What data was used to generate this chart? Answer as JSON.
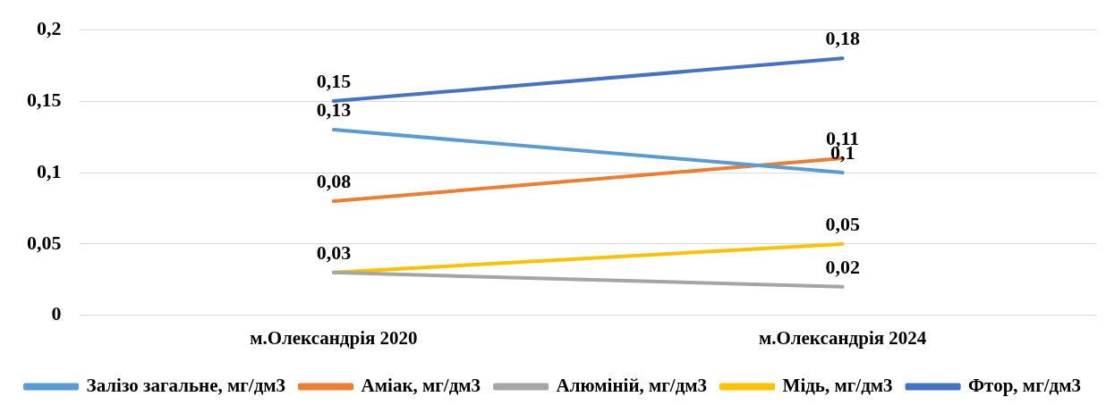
{
  "chart_data": {
    "type": "line",
    "categories": [
      "м.Олександрія 2020",
      "м.Олександрія 2024"
    ],
    "series": [
      {
        "name": "Залізо загальне, мг/дм3",
        "color": "#5b9bd5",
        "values": [
          0.13,
          0.1
        ],
        "value_labels": [
          "0,13",
          "0,1"
        ]
      },
      {
        "name": "Аміак, мг/дм3",
        "color": "#ed7d31",
        "values": [
          0.08,
          0.11
        ],
        "value_labels": [
          "0,08",
          "0,11"
        ]
      },
      {
        "name": "Алюміній, мг/дм3",
        "color": "#a5a5a5",
        "values": [
          0.03,
          0.02
        ],
        "value_labels": [
          null,
          "0,02"
        ]
      },
      {
        "name": "Мідь, мг/дм3",
        "color": "#ffc000",
        "values": [
          0.03,
          0.05
        ],
        "value_labels": [
          "0,03",
          "0,05"
        ]
      },
      {
        "name": "Фтор, мг/дм3",
        "color": "#4472c4",
        "values": [
          0.15,
          0.18
        ],
        "value_labels": [
          "0,15",
          "0,18"
        ]
      }
    ],
    "ylim": [
      0,
      0.2
    ],
    "yticks": [
      0,
      {
        "value": 0.05,
        "label": "0,05"
      },
      {
        "value": 0.1,
        "label": "0,1"
      },
      {
        "value": 0.15,
        "label": "0,15"
      },
      {
        "value": 0.2,
        "label": "0,2"
      }
    ],
    "grid": "y",
    "legend": "bottom",
    "marker": "none",
    "line_style": "solid"
  }
}
